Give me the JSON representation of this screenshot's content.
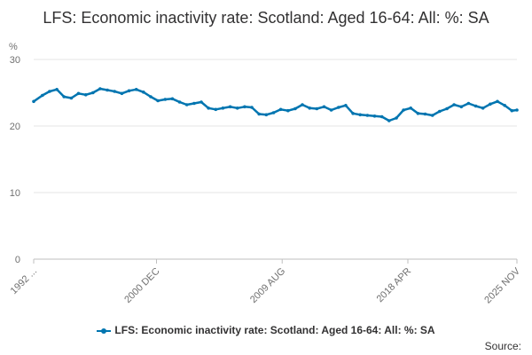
{
  "chart_data": {
    "type": "line",
    "title": "LFS: Economic inactivity rate: Scotland: Aged 16-64: All: %: SA",
    "ylabel": "%",
    "xlabel": "",
    "ylim": [
      0,
      30
    ],
    "yticks": [
      0,
      10,
      20,
      30
    ],
    "grid": true,
    "legend_position": "bottom",
    "x_ticks": [
      "1992 ...",
      "2000 DEC",
      "2009 AUG",
      "2018 APR",
      "2025 NOV"
    ],
    "x_tick_years": [
      1992.4,
      2000.9,
      2009.6,
      2018.3,
      2025.85
    ],
    "x_range": [
      1992.4,
      2025.85
    ],
    "series": [
      {
        "name": "LFS: Economic inactivity rate: Scotland: Aged 16-64: All: %: SA",
        "color": "#0075b0",
        "x": [
          1992.4,
          1993.0,
          1993.5,
          1994.0,
          1994.5,
          1995.0,
          1995.5,
          1996.0,
          1996.5,
          1997.0,
          1997.5,
          1998.0,
          1998.5,
          1999.0,
          1999.5,
          2000.0,
          2000.5,
          2001.0,
          2001.5,
          2002.0,
          2002.5,
          2003.0,
          2003.5,
          2004.0,
          2004.5,
          2005.0,
          2005.5,
          2006.0,
          2006.5,
          2007.0,
          2007.5,
          2008.0,
          2008.5,
          2009.0,
          2009.5,
          2010.0,
          2010.5,
          2011.0,
          2011.5,
          2012.0,
          2012.5,
          2013.0,
          2013.5,
          2014.0,
          2014.5,
          2015.0,
          2015.5,
          2016.0,
          2016.5,
          2017.0,
          2017.5,
          2018.0,
          2018.5,
          2019.0,
          2019.5,
          2020.0,
          2020.5,
          2021.0,
          2021.5,
          2022.0,
          2022.5,
          2023.0,
          2023.5,
          2024.0,
          2024.5,
          2025.0,
          2025.5,
          2025.85
        ],
        "values": [
          23.7,
          24.6,
          25.2,
          25.5,
          24.4,
          24.2,
          24.9,
          24.7,
          25.0,
          25.6,
          25.4,
          25.2,
          24.9,
          25.3,
          25.5,
          25.1,
          24.4,
          23.8,
          24.0,
          24.1,
          23.6,
          23.2,
          23.4,
          23.6,
          22.7,
          22.5,
          22.7,
          22.9,
          22.7,
          22.9,
          22.8,
          21.8,
          21.7,
          22.0,
          22.5,
          22.3,
          22.6,
          23.2,
          22.7,
          22.6,
          22.9,
          22.4,
          22.8,
          23.1,
          21.9,
          21.7,
          21.6,
          21.5,
          21.4,
          20.8,
          21.2,
          22.4,
          22.7,
          21.9,
          21.8,
          21.6,
          22.2,
          22.6,
          23.2,
          22.9,
          23.4,
          23.0,
          22.7,
          23.3,
          23.7,
          23.1,
          22.3,
          22.4
        ]
      }
    ]
  },
  "legend": {
    "label": "LFS: Economic inactivity rate: Scotland: Aged 16-64: All: %: SA"
  },
  "source": {
    "label": "Source:"
  }
}
